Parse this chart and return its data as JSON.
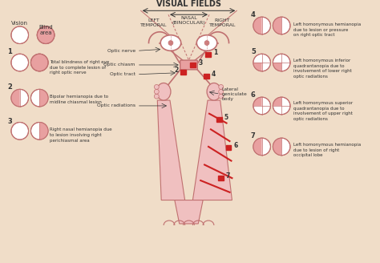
{
  "bg_color": "#f0ddc8",
  "pink": "#e8a0a0",
  "red": "#cc2222",
  "light_pink": "#f0c0c0",
  "outline": "#c07070",
  "text_color": "#333333",
  "title": "VISUAL FIELDS",
  "nasal": "NASAL\n(BINOCULAR)",
  "left_temporal": "LEFT\nTEMPORAL",
  "right_temporal": "RIGHT\nTEMPORAL",
  "vision_label": "Vision",
  "blind_label": "Blind\narea",
  "optic_nerve": "Optic nerve",
  "optic_chiasm": "Optic chiasm",
  "optic_tract": "Optic tract",
  "lateral_geniculate": "Lateral\ngeniculate\nbody",
  "optic_radiations": "Optic radiations",
  "label1": "Total blindness of right eye\ndue to complete lesion of\nright optic nerve",
  "label2": "Bipolar hemianopia due to\nmidline chiasmal lesion",
  "label3": "Right nasal hemianopia due\nto lesion involving right\nperichiasmal area",
  "label4": "Left homonymous hemianopia\ndue to lesion or pressure\non right optic tract",
  "label5": "Left homonymous inferior\nquadrantanopia due to\ninvolvement of lower right\noptic radiations",
  "label6": "Left homonymous superior\nquadrantanopia due to\ninvolvement of upper right\noptic radiations",
  "label7": "Left homonymous hemianopia\ndue to lesion of right\noccipital lobe"
}
